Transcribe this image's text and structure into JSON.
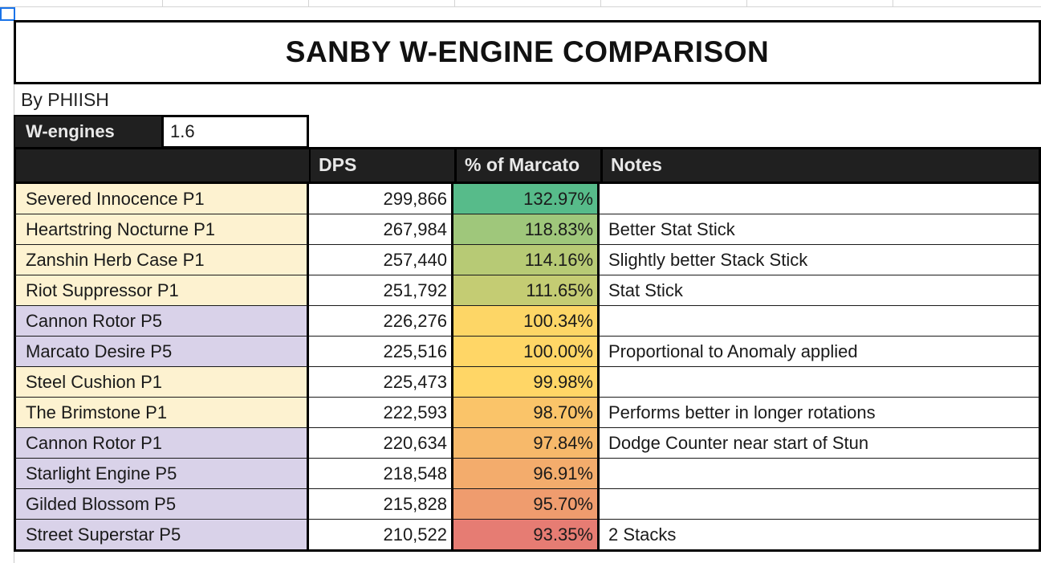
{
  "title": "SANBY W-ENGINE COMPARISON",
  "byline": "By PHIISH",
  "version": {
    "label": "W-engines",
    "value": "1.6"
  },
  "headers": {
    "name": "",
    "dps": "DPS",
    "pct": "% of Marcato",
    "notes": "Notes"
  },
  "colors": {
    "s_rank_bg": "#fdf2d0",
    "a_rank_bg": "#d9d2e9",
    "header_bg": "#202020",
    "scale_high": "#57bb8a",
    "scale_mid": "#ffd666",
    "scale_low": "#e67c73"
  },
  "rows": [
    {
      "name": "Severed Innocence P1",
      "dps": "299,866",
      "pct": "132.97%",
      "pct_value": 132.97,
      "notes": "",
      "tier": "s"
    },
    {
      "name": "Heartstring Nocturne P1",
      "dps": "267,984",
      "pct": "118.83%",
      "pct_value": 118.83,
      "notes": "Better Stat Stick",
      "tier": "s"
    },
    {
      "name": "Zanshin Herb Case P1",
      "dps": "257,440",
      "pct": "114.16%",
      "pct_value": 114.16,
      "notes": "Slightly better Stack Stick",
      "tier": "s"
    },
    {
      "name": "Riot Suppressor P1",
      "dps": "251,792",
      "pct": "111.65%",
      "pct_value": 111.65,
      "notes": "Stat Stick",
      "tier": "s"
    },
    {
      "name": "Cannon Rotor P5",
      "dps": "226,276",
      "pct": "100.34%",
      "pct_value": 100.34,
      "notes": "",
      "tier": "a"
    },
    {
      "name": "Marcato Desire P5",
      "dps": "225,516",
      "pct": "100.00%",
      "pct_value": 100.0,
      "notes": "Proportional to Anomaly applied",
      "tier": "a"
    },
    {
      "name": "Steel Cushion P1",
      "dps": "225,473",
      "pct": "99.98%",
      "pct_value": 99.98,
      "notes": "",
      "tier": "s"
    },
    {
      "name": "The Brimstone P1",
      "dps": "222,593",
      "pct": "98.70%",
      "pct_value": 98.7,
      "notes": "Performs better in longer rotations",
      "tier": "s"
    },
    {
      "name": "Cannon Rotor P1",
      "dps": "220,634",
      "pct": "97.84%",
      "pct_value": 97.84,
      "notes": "Dodge Counter near start of Stun",
      "tier": "a"
    },
    {
      "name": "Starlight Engine P5",
      "dps": "218,548",
      "pct": "96.91%",
      "pct_value": 96.91,
      "notes": "",
      "tier": "a"
    },
    {
      "name": "Gilded Blossom P5",
      "dps": "215,828",
      "pct": "95.70%",
      "pct_value": 95.7,
      "notes": "",
      "tier": "a"
    },
    {
      "name": "Street Superstar P5",
      "dps": "210,522",
      "pct": "93.35%",
      "pct_value": 93.35,
      "notes": "2 Stacks",
      "tier": "a"
    }
  ]
}
